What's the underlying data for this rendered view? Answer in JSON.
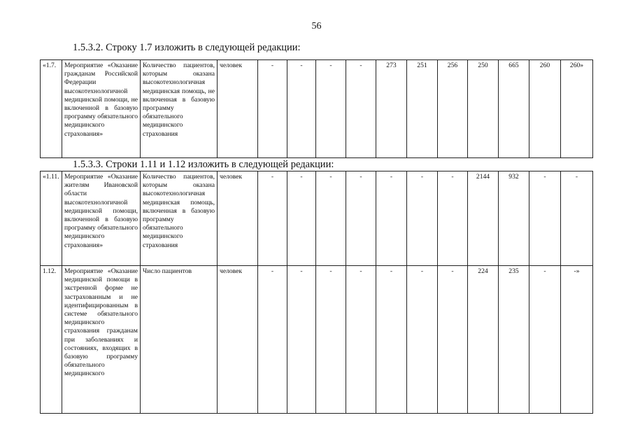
{
  "page_number": "56",
  "section_1": {
    "heading": "1.5.3.2. Строку 1.7 изложить в следующей редакции:",
    "rows": [
      {
        "num": "«1.7.",
        "event": "Мероприятие «Оказание гражданам Российской Федерации высокотехнологичной медицинской помощи, не включенной в базовую программу обязательного медицинского страхования»",
        "indicator": "Количество пациентов, которым оказана высокотехнологичная медицинская помощь, не включенная в базовую программу обязательного медицинского страхования",
        "unit": "человек",
        "values": [
          "-",
          "-",
          "-",
          "-",
          "273",
          "251",
          "256",
          "250",
          "665",
          "260",
          "260»"
        ]
      }
    ]
  },
  "section_2": {
    "heading": "1.5.3.3. Строки 1.11 и 1.12 изложить в следующей редакции:",
    "rows": [
      {
        "num": "«1.11.",
        "event": "Мероприятие «Оказание жителям Ивановской области высокотехнологичной медицинской помощи, включенной в базовую программу обязательного медицинского страхования»",
        "indicator": "Количество пациентов, которым оказана высокотехнологичная медицинская помощь, включенная в базовую программу обязательного медицинского страхования",
        "unit": "человек",
        "values": [
          "-",
          "-",
          "-",
          "-",
          "-",
          "-",
          "-",
          "2144",
          "932",
          "-",
          "-"
        ]
      },
      {
        "num": "1.12.",
        "event": "Мероприятие «Оказание медицинской помощи в экстренной форме не застрахованным и не идентифицированным в системе обязательного медицинского страхования гражданам при заболеваниях и состояниях, входящих в базовую программу обязательного медицинского",
        "indicator": "Число пациентов",
        "unit": "человек",
        "values": [
          "-",
          "-",
          "-",
          "-",
          "-",
          "-",
          "-",
          "224",
          "235",
          "-",
          "-»"
        ]
      }
    ]
  }
}
